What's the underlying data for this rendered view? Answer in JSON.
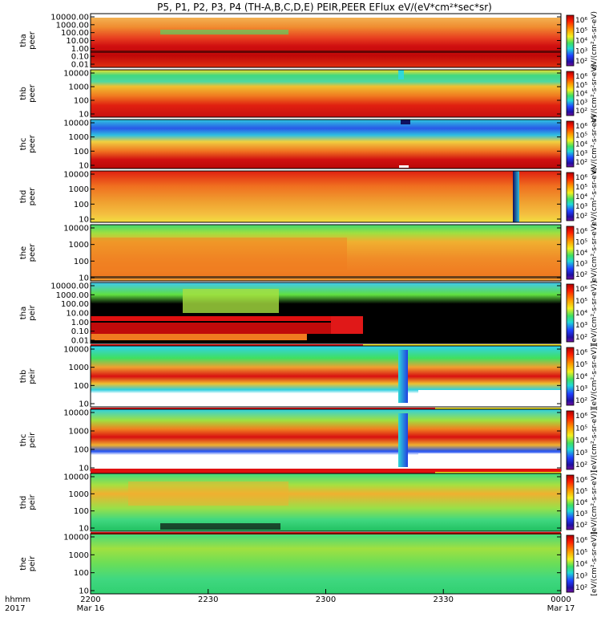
{
  "chart_data": {
    "type": "heatmap",
    "title": "P5, P1, P2, P3, P4 (TH-A,B,C,D,E) PEIR,PEER EFlux eV/(eV*cm²*sec*sr)",
    "x_axis": {
      "row_labels": [
        "hhmm",
        "2017"
      ],
      "ticks": [
        {
          "label": "2200",
          "sub": "Mar 16",
          "minute": 0
        },
        {
          "label": "2230",
          "sub": "",
          "minute": 30
        },
        {
          "label": "2300",
          "sub": "",
          "minute": 60
        },
        {
          "label": "2330",
          "sub": "",
          "minute": 90
        },
        {
          "label": "0000",
          "sub": "Mar 17",
          "minute": 120
        }
      ],
      "range_minutes": [
        0,
        120
      ]
    },
    "colorbar": {
      "labels": [
        "10⁶",
        "10⁵",
        "10⁴",
        "10³",
        "10²"
      ],
      "units_electron": "eV/(cm²-s-sr-eV)",
      "units_ion": "[eV/(cm²-s-sr-eV)]"
    },
    "panels": [
      {
        "probe": "tha",
        "species": "peer",
        "yticks": [
          "10000.00",
          "1000.00",
          "100.00",
          "10.00",
          "1.00",
          "0.10",
          "0.01"
        ],
        "scheme": "electron_a"
      },
      {
        "probe": "thb",
        "species": "peer",
        "yticks": [
          "10000",
          "1000",
          "100",
          "10"
        ],
        "scheme": "electron_b"
      },
      {
        "probe": "thc",
        "species": "peer",
        "yticks": [
          "10000",
          "1000",
          "100",
          "10"
        ],
        "scheme": "electron_c"
      },
      {
        "probe": "thd",
        "species": "peer",
        "yticks": [
          "10000",
          "1000",
          "100",
          "10"
        ],
        "scheme": "electron_d"
      },
      {
        "probe": "the",
        "species": "peer",
        "yticks": [
          "10000",
          "1000",
          "100",
          "10"
        ],
        "scheme": "electron_e"
      },
      {
        "probe": "tha",
        "species": "peir",
        "yticks": [
          "10000.00",
          "1000.00",
          "100.00",
          "10.00",
          "1.00",
          "0.10",
          "0.01"
        ],
        "scheme": "ion_a"
      },
      {
        "probe": "thb",
        "species": "peir",
        "yticks": [
          "10000",
          "1000",
          "100",
          "10"
        ],
        "scheme": "ion_b"
      },
      {
        "probe": "thc",
        "species": "peir",
        "yticks": [
          "10000",
          "1000",
          "100",
          "10"
        ],
        "scheme": "ion_c"
      },
      {
        "probe": "thd",
        "species": "peir",
        "yticks": [
          "10000",
          "1000",
          "100",
          "10"
        ],
        "scheme": "ion_d"
      },
      {
        "probe": "the",
        "species": "peir",
        "yticks": [
          "10000",
          "1000",
          "100",
          "10"
        ],
        "scheme": "ion_e"
      }
    ],
    "colors": {
      "black": "#000000",
      "darkred": "#b40000",
      "red": "#e0100c",
      "orange": "#f07a10",
      "lightorange": "#f4a028",
      "yellow": "#f2e41c",
      "lightgreen": "#8ee04a",
      "green": "#24d46a",
      "cyan": "#28d8d8",
      "blue": "#2050f0",
      "navy": "#101090",
      "purple": "#6a1aa8"
    }
  }
}
